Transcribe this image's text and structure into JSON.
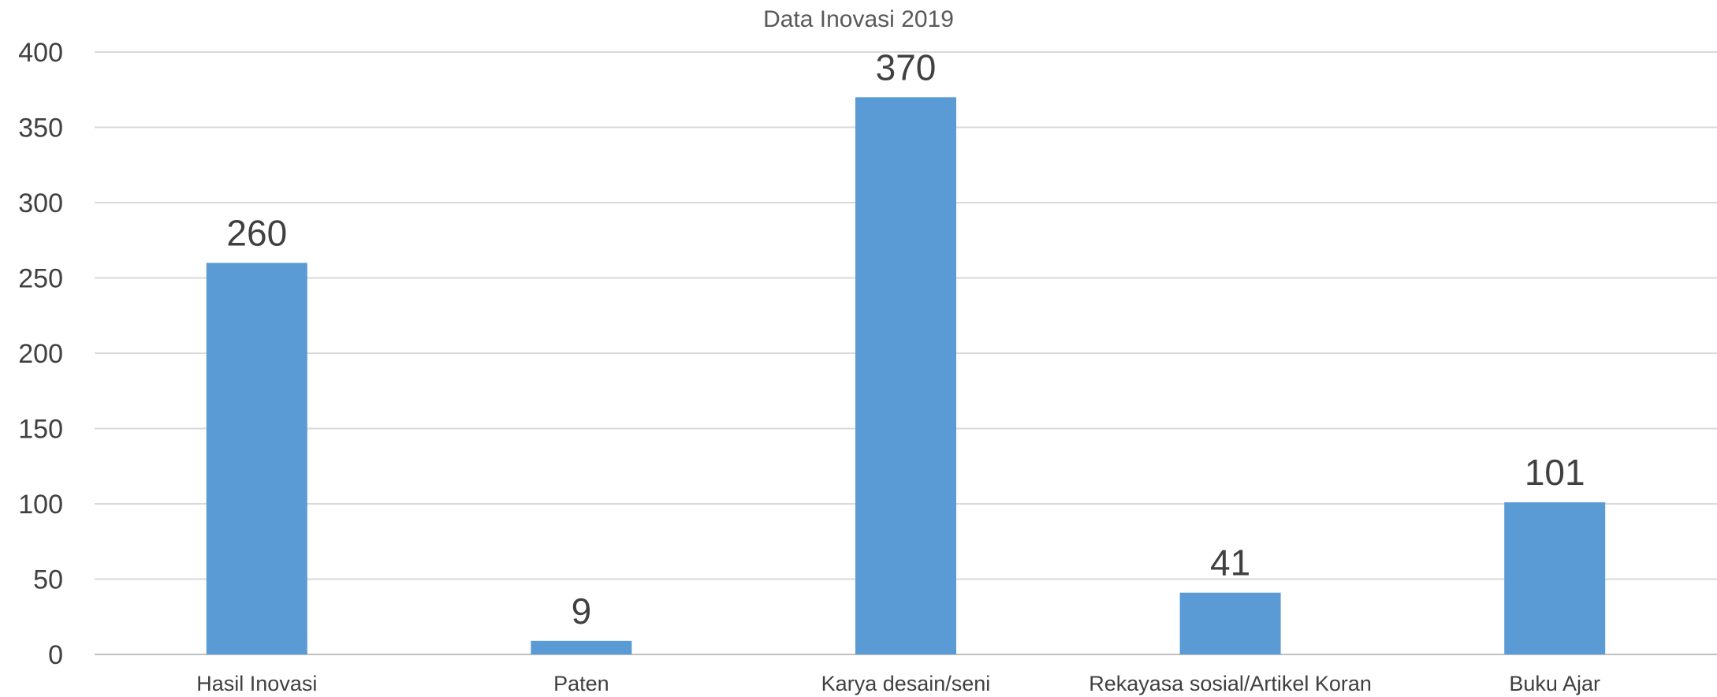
{
  "chart_data": {
    "type": "bar",
    "title": "Data Inovasi 2019",
    "xlabel": "",
    "ylabel": "",
    "categories": [
      "Hasil Inovasi",
      "Paten",
      "Karya desain/seni",
      "Rekayasa sosial/Artikel Koran",
      "Buku Ajar"
    ],
    "values": [
      260,
      9,
      370,
      41,
      101
    ],
    "data_labels": [
      "260",
      "9",
      "370",
      "41",
      "101"
    ],
    "ylim": [
      0,
      400
    ],
    "yticks": [
      0,
      50,
      100,
      150,
      200,
      250,
      300,
      350,
      400
    ],
    "grid": true,
    "legend": "none",
    "bar_color": "#5b9bd5"
  }
}
